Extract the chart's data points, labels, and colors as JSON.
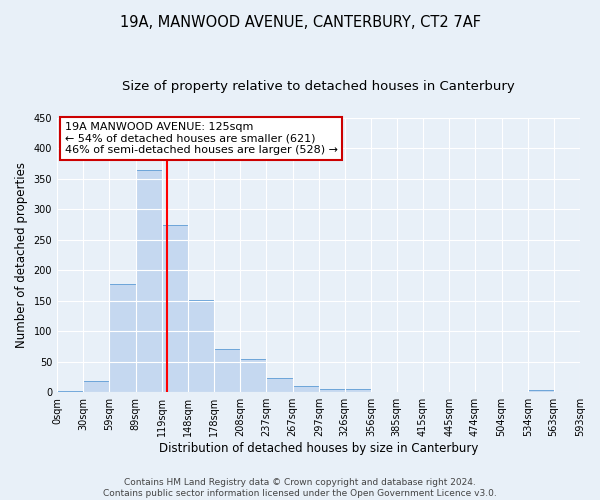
{
  "title": "19A, MANWOOD AVENUE, CANTERBURY, CT2 7AF",
  "subtitle": "Size of property relative to detached houses in Canterbury",
  "xlabel": "Distribution of detached houses by size in Canterbury",
  "ylabel": "Number of detached properties",
  "footer_line1": "Contains HM Land Registry data © Crown copyright and database right 2024.",
  "footer_line2": "Contains public sector information licensed under the Open Government Licence v3.0.",
  "annotation_line1": "19A MANWOOD AVENUE: 125sqm",
  "annotation_line2": "← 54% of detached houses are smaller (621)",
  "annotation_line3": "46% of semi-detached houses are larger (528) →",
  "bin_edges": [
    0,
    30,
    59,
    89,
    119,
    148,
    178,
    208,
    237,
    267,
    297,
    326,
    356,
    385,
    415,
    445,
    474,
    504,
    534,
    563,
    593
  ],
  "bar_heights": [
    2,
    18,
    177,
    365,
    275,
    151,
    71,
    55,
    24,
    10,
    6,
    5,
    1,
    1,
    0,
    1,
    0,
    0,
    3,
    1
  ],
  "bar_color": "#c5d8f0",
  "bar_edge_color": "#5b9bd5",
  "vline_x": 125,
  "vline_color": "red",
  "background_color": "#e8f0f8",
  "grid_color": "#ffffff",
  "ylim": [
    0,
    450
  ],
  "yticks": [
    0,
    50,
    100,
    150,
    200,
    250,
    300,
    350,
    400,
    450
  ],
  "annotation_box_facecolor": "#ffffff",
  "annotation_box_edgecolor": "#cc0000",
  "title_fontsize": 10.5,
  "subtitle_fontsize": 9.5,
  "tick_label_fontsize": 7,
  "axis_label_fontsize": 8.5,
  "annotation_fontsize": 8,
  "footer_fontsize": 6.5
}
